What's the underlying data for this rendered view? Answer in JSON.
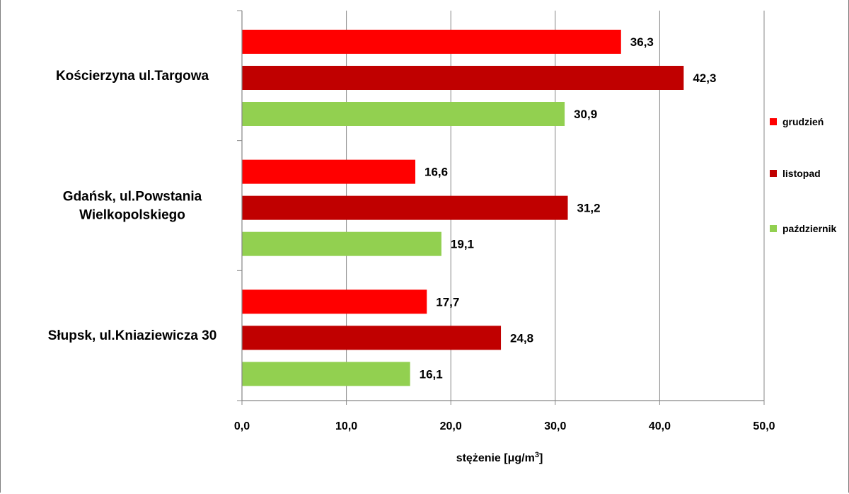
{
  "chart_data": {
    "type": "bar",
    "orientation": "horizontal",
    "categories": [
      [
        "Kościerzyna ul.Targowa"
      ],
      [
        "Gdańsk, ul.Powstania",
        "Wielkopolskiego"
      ],
      [
        "Słupsk, ul.Kniaziewicza 30"
      ]
    ],
    "series": [
      {
        "name": "grudzień",
        "color": "#ff0000",
        "values": [
          36.3,
          16.6,
          17.7
        ]
      },
      {
        "name": "listopad",
        "color": "#c00000",
        "values": [
          42.3,
          31.2,
          24.8
        ]
      },
      {
        "name": "październik",
        "color": "#92d050",
        "values": [
          30.9,
          19.1,
          16.1
        ]
      }
    ],
    "value_labels": [
      [
        "36,3",
        "16,6",
        "17,7"
      ],
      [
        "42,3",
        "31,2",
        "24,8"
      ],
      [
        "30,9",
        "19,1",
        "16,1"
      ]
    ],
    "x_ticks": [
      0,
      10,
      20,
      30,
      40,
      50
    ],
    "x_tick_labels": [
      "0,0",
      "10,0",
      "20,0",
      "30,0",
      "40,0",
      "50,0"
    ],
    "xlim": [
      0,
      50
    ],
    "xlabel": "stężenie [μg/m",
    "xlabel_superscript": "3",
    "xlabel_suffix": "]",
    "title": "",
    "grid": "vertical",
    "legend_position": "right"
  }
}
